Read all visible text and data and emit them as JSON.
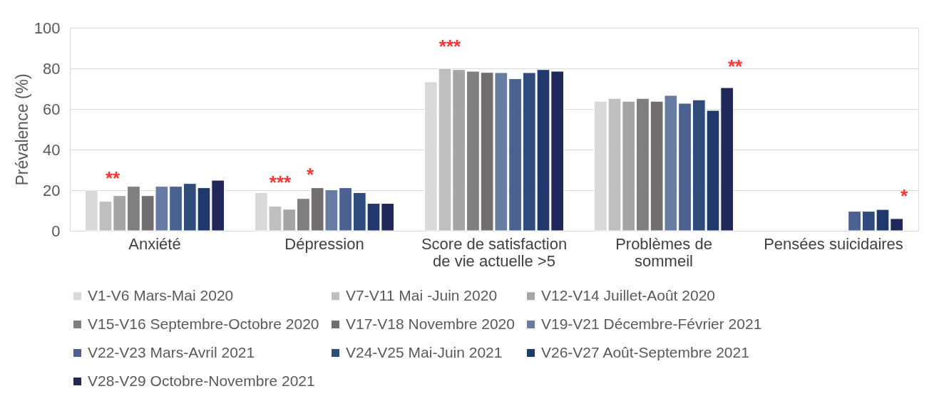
{
  "chart_data": {
    "type": "bar",
    "ylabel": "Prévalence (%)",
    "categories": [
      "Anxiété",
      "Dépression",
      "Score de satisfaction\nde vie actuelle >5",
      "Problèmes de\nsommeil",
      "Pensées suicidaires"
    ],
    "ylim": [
      0,
      100
    ],
    "yticks": [
      0,
      20,
      40,
      60,
      80,
      100
    ],
    "grid": "y",
    "legend": "bottom",
    "series": [
      {
        "name": "V1-V6 Mars-Mai 2020",
        "color": "#d9d9d9",
        "values": [
          20,
          18.8,
          73.4,
          63.8,
          null
        ]
      },
      {
        "name": "V7-V11 Mai -Juin 2020",
        "color": "#bfbfbf",
        "values": [
          14.5,
          12.1,
          80,
          65.2,
          null
        ]
      },
      {
        "name": "V12-V14 Juillet-Août 2020",
        "color": "#a5a5a5",
        "values": [
          17.3,
          10.6,
          79.4,
          63.8,
          null
        ]
      },
      {
        "name": "V15-V16 Septembre-Octobre 2020",
        "color": "#7f7f7f",
        "values": [
          21.9,
          15.9,
          78.6,
          65.2,
          null
        ]
      },
      {
        "name": "V17-V18 Novembre 2020",
        "color": "#726e6d",
        "values": [
          17.3,
          21.2,
          78,
          63.8,
          null
        ]
      },
      {
        "name": "V19-V21 Décembre-Février 2021",
        "color": "#687ba1",
        "values": [
          21.9,
          20.2,
          77.9,
          66.7,
          null
        ]
      },
      {
        "name": "V22-V23 Mars-Avril 2021",
        "color": "#4b618f",
        "values": [
          21.9,
          21.2,
          74.9,
          62.8,
          9.6
        ]
      },
      {
        "name": "V24-V25 Mai-Juin 2021",
        "color": "#2f4b7c",
        "values": [
          23.3,
          18.8,
          77.9,
          64.5,
          9.6
        ]
      },
      {
        "name": "V26-V27 Août-Septembre 2021",
        "color": "#1f396c",
        "values": [
          21.2,
          13.5,
          79.4,
          59.3,
          10.5
        ]
      },
      {
        "name": "V28-V29 Octobre-Novembre 2021",
        "color": "#1f2858",
        "values": [
          24.9,
          13.5,
          78.6,
          70.5,
          6.0
        ]
      }
    ],
    "annotations": [
      "**",
      "***",
      "*",
      "***",
      "**",
      "*"
    ]
  }
}
